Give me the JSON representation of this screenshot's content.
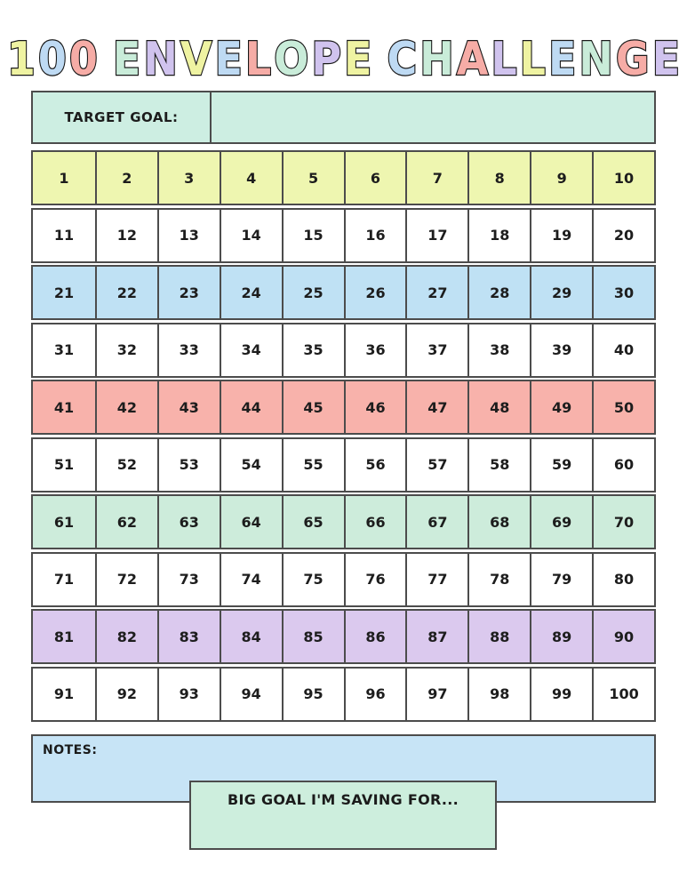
{
  "title": {
    "text": "100 ENVELOPE CHALLENGE",
    "stroke_color": "#191919",
    "letters": [
      {
        "char": "1",
        "color": "#eff3a2"
      },
      {
        "char": "0",
        "color": "#bedaf3"
      },
      {
        "char": "0",
        "color": "#f6aca6"
      },
      {
        "char": " ",
        "color": null
      },
      {
        "char": "E",
        "color": "#c9ecd9"
      },
      {
        "char": "N",
        "color": "#d0c3ee"
      },
      {
        "char": "V",
        "color": "#eff3a2"
      },
      {
        "char": "E",
        "color": "#bedaf3"
      },
      {
        "char": "L",
        "color": "#f6aca6"
      },
      {
        "char": "O",
        "color": "#c9ecd9"
      },
      {
        "char": "P",
        "color": "#d0c3ee"
      },
      {
        "char": "E",
        "color": "#eff3a2"
      },
      {
        "char": " ",
        "color": null
      },
      {
        "char": "C",
        "color": "#bedaf3"
      },
      {
        "char": "H",
        "color": "#c9ecd9"
      },
      {
        "char": "A",
        "color": "#f6aca6"
      },
      {
        "char": "L",
        "color": "#d0c3ee"
      },
      {
        "char": "L",
        "color": "#eff3a2"
      },
      {
        "char": "E",
        "color": "#bedaf3"
      },
      {
        "char": "N",
        "color": "#c9ecd9"
      },
      {
        "char": "G",
        "color": "#f6aca6"
      },
      {
        "char": "E",
        "color": "#d0c3ee"
      }
    ]
  },
  "target_goal": {
    "label": "TARGET GOAL:",
    "value": "",
    "background": "#cdeee2"
  },
  "grid": {
    "border_color": "#4c4c4c",
    "rows": [
      {
        "background": "#eef6b0",
        "numbers": [
          1,
          2,
          3,
          4,
          5,
          6,
          7,
          8,
          9,
          10
        ]
      },
      {
        "background": "#ffffff",
        "numbers": [
          11,
          12,
          13,
          14,
          15,
          16,
          17,
          18,
          19,
          20
        ]
      },
      {
        "background": "#bfe1f4",
        "numbers": [
          21,
          22,
          23,
          24,
          25,
          26,
          27,
          28,
          29,
          30
        ]
      },
      {
        "background": "#ffffff",
        "numbers": [
          31,
          32,
          33,
          34,
          35,
          36,
          37,
          38,
          39,
          40
        ]
      },
      {
        "background": "#f8b2ab",
        "numbers": [
          41,
          42,
          43,
          44,
          45,
          46,
          47,
          48,
          49,
          50
        ]
      },
      {
        "background": "#ffffff",
        "numbers": [
          51,
          52,
          53,
          54,
          55,
          56,
          57,
          58,
          59,
          60
        ]
      },
      {
        "background": "#cdecdb",
        "numbers": [
          61,
          62,
          63,
          64,
          65,
          66,
          67,
          68,
          69,
          70
        ]
      },
      {
        "background": "#ffffff",
        "numbers": [
          71,
          72,
          73,
          74,
          75,
          76,
          77,
          78,
          79,
          80
        ]
      },
      {
        "background": "#dbc9ee",
        "numbers": [
          81,
          82,
          83,
          84,
          85,
          86,
          87,
          88,
          89,
          90
        ]
      },
      {
        "background": "#ffffff",
        "numbers": [
          91,
          92,
          93,
          94,
          95,
          96,
          97,
          98,
          99,
          100
        ]
      }
    ]
  },
  "notes": {
    "label": "NOTES:",
    "value": "",
    "background": "#c7e4f6"
  },
  "big_goal": {
    "label": "BIG GOAL I'M SAVING FOR...",
    "value": "",
    "background": "#cdeedd"
  }
}
